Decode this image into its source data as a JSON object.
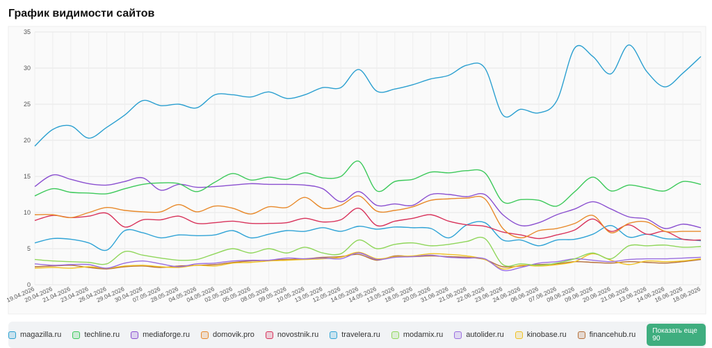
{
  "chart_data": {
    "type": "line",
    "title": "График видимости сайтов",
    "categories": [
      "19.04.2026",
      "20.04.2026",
      "21.04.2026",
      "23.04.2026",
      "26.04.2026",
      "29.04.2026",
      "30.04.2026",
      "07.05.2026",
      "28.05.2026",
      "04.05.2026",
      "04.05.2026",
      "02.05.2026",
      "05.05.2026",
      "08.05.2026",
      "09.05.2026",
      "10.05.2026",
      "13.05.2026",
      "12.05.2026",
      "14.05.2026",
      "14.05.2026",
      "13.05.2026",
      "18.05.2026",
      "20.05.2026",
      "31.06.2026",
      "21.06.2026",
      "22.06.2026",
      "23.06.2026",
      "24.06.2026",
      "06.06.2026",
      "07.06.2026",
      "09.06.2026",
      "09.06.2026",
      "20.06.2026",
      "21.06.2026",
      "13.06.2026",
      "14.06.2026",
      "16.06.2026",
      "18.06.2026"
    ],
    "ylim": [
      0,
      35
    ],
    "yticks": [
      0,
      5,
      10,
      15,
      20,
      25,
      30,
      35
    ],
    "grid": true,
    "series": [
      {
        "name": "magazilla.ru",
        "color": "#2a9fd0",
        "values": [
          19.2,
          21.5,
          22,
          20.3,
          21.8,
          23.5,
          25.5,
          24.8,
          25,
          24.5,
          26.3,
          26.3,
          26,
          26.7,
          25.8,
          26.3,
          27.3,
          27.3,
          29.8,
          26.8,
          27.1,
          27.7,
          28.5,
          29,
          30.4,
          30,
          23.5,
          24.3,
          23.8,
          25.5,
          32.8,
          31.6,
          29.2,
          33.2,
          29.5,
          27.4,
          29.3,
          31.6
        ]
      },
      {
        "name": "techline.ru",
        "color": "#3cc95a",
        "values": [
          12.3,
          13.3,
          12.8,
          12.7,
          12.6,
          13.3,
          13.9,
          14.1,
          14,
          12.9,
          14.2,
          15.4,
          14.5,
          14.9,
          14.6,
          15.5,
          14.8,
          15,
          17.1,
          13,
          14.3,
          14.6,
          15.6,
          15.5,
          15.8,
          15.5,
          11.5,
          11.8,
          11.7,
          10.9,
          12.9,
          14.9,
          13,
          13.8,
          13.4,
          13,
          14.3,
          13.9
        ]
      },
      {
        "name": "mediaforge.ru",
        "color": "#8a4fd0",
        "values": [
          13.6,
          15.2,
          14.6,
          14,
          13.8,
          14.3,
          14.8,
          13.1,
          13.9,
          13.5,
          13.6,
          13.8,
          14,
          13.9,
          13.9,
          13.8,
          13.3,
          11.5,
          12.9,
          11,
          11.2,
          11,
          12.5,
          12.5,
          12.2,
          12.5,
          9.7,
          8.2,
          8.6,
          9.7,
          10.5,
          11.5,
          10.5,
          9.4,
          9.1,
          7.8,
          8.4,
          7.9
        ]
      },
      {
        "name": "domovik.pro",
        "color": "#e8892a",
        "values": [
          9.7,
          9.7,
          9.3,
          10,
          10.7,
          10.3,
          10.1,
          10.1,
          11.1,
          10.1,
          10.9,
          10.6,
          9.8,
          10.8,
          10.7,
          12.1,
          10.6,
          11,
          12.3,
          10.2,
          10.3,
          10.8,
          11.7,
          11.9,
          12,
          11.9,
          7.8,
          6.5,
          7.5,
          7.8,
          8.5,
          9.6,
          7.2,
          8.5,
          8.7,
          7.4,
          7.4,
          7.4
        ]
      },
      {
        "name": "novostnik.ru",
        "color": "#d8325a",
        "values": [
          8.9,
          9.6,
          9.3,
          9.5,
          9.9,
          8,
          9,
          9,
          9.5,
          8.5,
          8.6,
          8.8,
          8.5,
          8.5,
          8.6,
          9.2,
          8.7,
          9,
          10.6,
          8.2,
          8.8,
          9.2,
          9.7,
          8.8,
          8.3,
          8.1,
          7.3,
          6.9,
          6.4,
          6.9,
          7.6,
          9.1,
          7.4,
          8.3,
          7,
          7.4,
          6.3,
          6.2
        ]
      },
      {
        "name": "travelera.ru",
        "color": "#2fa3d6",
        "values": [
          5.8,
          6.4,
          6.3,
          5.8,
          4.8,
          7.5,
          7.2,
          6.5,
          6.9,
          6.8,
          6.9,
          7.5,
          6.5,
          7,
          7.5,
          7.4,
          7.9,
          7.4,
          8.1,
          7.7,
          8,
          7.9,
          7.8,
          6.5,
          8.3,
          8.6,
          6.2,
          6.2,
          5.4,
          6.2,
          6.3,
          7,
          8.2,
          6.6,
          7,
          6.4,
          6.3,
          6.1
        ]
      },
      {
        "name": "modamix.ru",
        "color": "#8fd65a",
        "values": [
          3.5,
          3.3,
          3.2,
          3.1,
          2.9,
          4.6,
          4.1,
          3.7,
          3.4,
          3.5,
          4.3,
          5,
          4.4,
          5,
          4.4,
          5.2,
          4.4,
          4.3,
          6.2,
          5,
          5.6,
          5.8,
          5.4,
          5.6,
          6,
          6.4,
          2.8,
          2.9,
          2.7,
          3,
          3.6,
          4.4,
          3.6,
          5.4,
          5.4,
          5.5,
          5.2,
          5.3
        ]
      },
      {
        "name": "autolider.ru",
        "color": "#9a6ee0",
        "values": [
          2.9,
          2.7,
          2.8,
          2.8,
          2.3,
          3,
          3.3,
          2.9,
          2.5,
          2.9,
          3,
          3.3,
          3.4,
          3.4,
          3.7,
          3.6,
          3.7,
          3.6,
          4.4,
          3.5,
          3.8,
          3.9,
          4.1,
          3.8,
          3.7,
          3.6,
          2,
          2.4,
          3,
          3.2,
          3.6,
          3.4,
          3.2,
          3.5,
          3.6,
          3.6,
          3.7,
          3.8
        ]
      },
      {
        "name": "kinobase.ru",
        "color": "#f0c020",
        "values": [
          2.3,
          2.4,
          2.3,
          2.5,
          2.3,
          2.6,
          2.7,
          2.5,
          2.4,
          2.7,
          2.6,
          3,
          3.1,
          3.3,
          3.4,
          3.5,
          3.6,
          3.8,
          4.5,
          3.6,
          3.9,
          4,
          4.3,
          4.2,
          4,
          3.5,
          2.2,
          2.7,
          2.6,
          2.8,
          3.2,
          4.3,
          3.4,
          2.8,
          3.3,
          3.2,
          3.3,
          3.6
        ]
      },
      {
        "name": "financehub.ru",
        "color": "#b5703a",
        "values": [
          2.5,
          2.6,
          2.7,
          2.4,
          2.2,
          2.5,
          2.6,
          2.4,
          2.6,
          2.7,
          2.8,
          3.1,
          3.3,
          3.4,
          3.5,
          3.6,
          3.8,
          3.9,
          4.2,
          3.4,
          4,
          3.9,
          4,
          3.9,
          3.8,
          3.5,
          2.5,
          2.6,
          2.8,
          2.9,
          3.2,
          3.1,
          3,
          3.2,
          3.1,
          3,
          3.2,
          3.5
        ]
      }
    ],
    "more_button": "Показать еще 90"
  }
}
